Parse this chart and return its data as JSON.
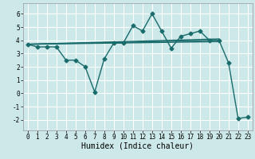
{
  "title": "",
  "xlabel": "Humidex (Indice chaleur)",
  "ylabel": "",
  "background_color": "#cce8e8",
  "line_color": "#1a6b6b",
  "grid_color": "#ffffff",
  "xlim": [
    -0.5,
    23.5
  ],
  "ylim": [
    -2.8,
    6.8
  ],
  "xticks": [
    0,
    1,
    2,
    3,
    4,
    5,
    6,
    7,
    8,
    9,
    10,
    11,
    12,
    13,
    14,
    15,
    16,
    17,
    18,
    19,
    20,
    21,
    22,
    23
  ],
  "yticks": [
    -2,
    -1,
    0,
    1,
    2,
    3,
    4,
    5,
    6
  ],
  "series": [
    {
      "x": [
        0,
        1,
        2,
        3,
        4,
        5,
        6,
        7,
        8,
        9,
        10,
        11,
        12,
        13,
        14,
        15,
        16,
        17,
        18,
        19,
        20,
        21,
        22,
        23
      ],
      "y": [
        3.7,
        3.5,
        3.5,
        3.5,
        2.5,
        2.5,
        2.0,
        0.1,
        2.6,
        3.8,
        3.8,
        5.1,
        4.7,
        6.0,
        4.7,
        3.4,
        4.3,
        4.5,
        4.7,
        4.0,
        4.0,
        2.3,
        -1.9,
        -1.8
      ],
      "marker": "D",
      "markersize": 2.5,
      "linewidth": 1.0,
      "is_main": true
    },
    {
      "x": [
        0,
        20
      ],
      "y": [
        3.7,
        4.0
      ],
      "marker": null,
      "markersize": 0,
      "linewidth": 1.0,
      "is_main": false
    },
    {
      "x": [
        0,
        20
      ],
      "y": [
        3.7,
        4.1
      ],
      "marker": null,
      "markersize": 0,
      "linewidth": 1.0,
      "is_main": false
    },
    {
      "x": [
        0,
        20
      ],
      "y": [
        3.7,
        3.9
      ],
      "marker": null,
      "markersize": 0,
      "linewidth": 1.0,
      "is_main": false
    }
  ],
  "font_family": "monospace",
  "tick_fontsize": 5.5,
  "label_fontsize": 7
}
